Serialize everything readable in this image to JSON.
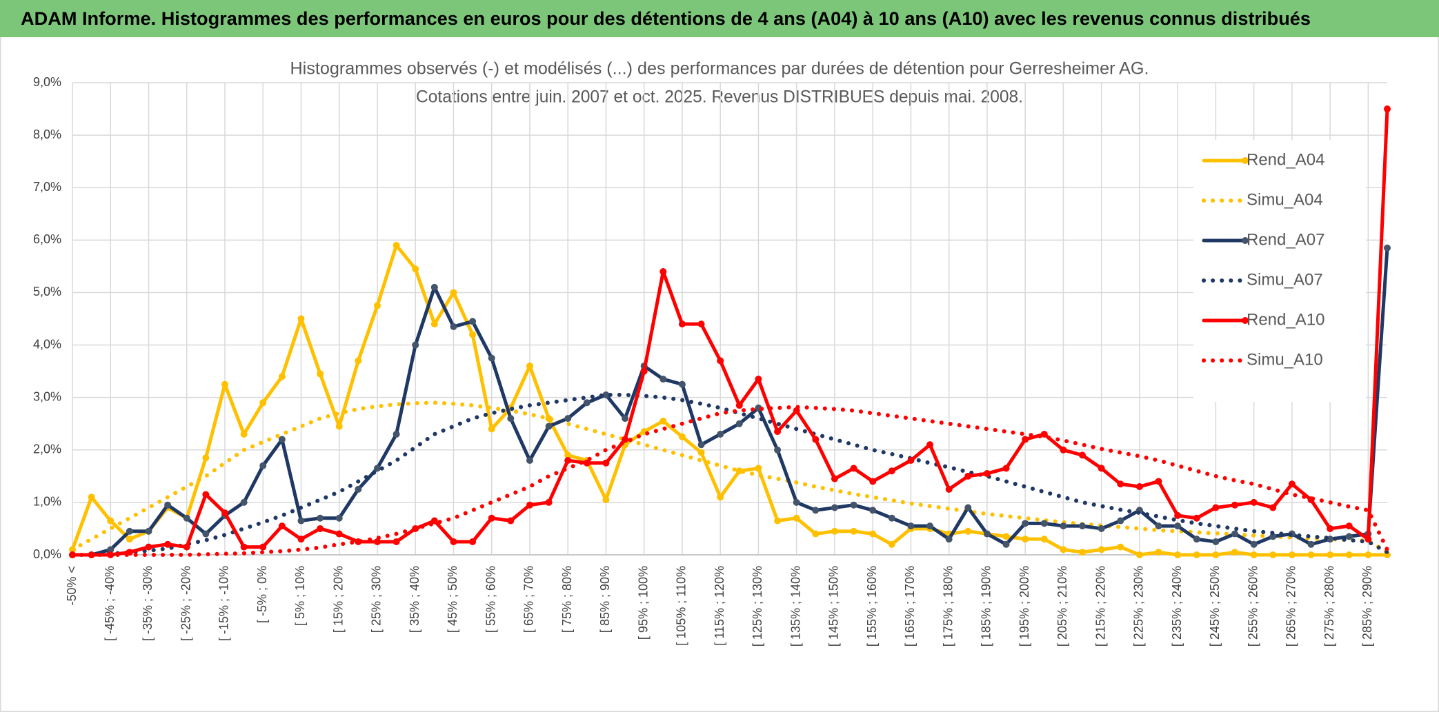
{
  "chart_data": {
    "type": "line",
    "header": "ADAM Informe. Histogrammes des performances en euros pour des détentions de 4 ans (A04) à 10 ans (A10) avec les revenus connus distribués",
    "title": "Histogrammes observés (-) et modélisés (...) des performances par durées de détention pour Gerresheimer AG.",
    "subtitle": "Cotations entre juin. 2007 et oct. 2025. Revenus DISTRIBUES depuis mai. 2008.",
    "categories": [
      "-50% <",
      null,
      "[ -45% ; -40%",
      null,
      "[ -35% ; -30%",
      null,
      "[ -25% ; -20%",
      null,
      "[ -15% ; -10%",
      null,
      "[ -5% ; 0%",
      null,
      "[ 5% ; 10%",
      null,
      "[ 15% ; 20%",
      null,
      "[ 25% ; 30%",
      null,
      "[ 35% ; 40%",
      null,
      "[ 45% ; 50%",
      null,
      "[ 55% ; 60%",
      null,
      "[ 65% ; 70%",
      null,
      "[ 75% ; 80%",
      null,
      "[ 85% ; 90%",
      null,
      "[ 95% ; 100%",
      null,
      "[ 105% ; 110%",
      null,
      "[ 115% ; 120%",
      null,
      "[ 125% ; 130%",
      null,
      "[ 135% ; 140%",
      null,
      "[ 145% ; 150%",
      null,
      "[ 155% ; 160%",
      null,
      "[ 165% ; 170%",
      null,
      "[ 175% ; 180%",
      null,
      "[ 185% ; 190%",
      null,
      "[ 195% ; 200%",
      null,
      "[ 205% ; 210%",
      null,
      "[ 215% ; 220%",
      null,
      "[ 225% ; 230%",
      null,
      "[ 235% ; 240%",
      null,
      "[ 245% ; 250%",
      null,
      "[ 255% ; 260%",
      null,
      "[ 265% ; 270%",
      null,
      "[ 275% ; 280%",
      null,
      "[ 285% ; 290%",
      null
    ],
    "series": [
      {
        "name": "Rend_A04",
        "color": "#ffc000",
        "line_style": "solid",
        "markers": true,
        "values": [
          0.1,
          1.1,
          0.65,
          0.3,
          0.45,
          0.9,
          0.7,
          1.85,
          3.25,
          2.3,
          2.9,
          3.4,
          4.5,
          3.45,
          2.45,
          3.7,
          4.75,
          5.9,
          5.45,
          4.4,
          5.0,
          4.2,
          2.4,
          2.8,
          3.6,
          2.6,
          1.9,
          1.8,
          1.05,
          2.1,
          2.35,
          2.55,
          2.25,
          1.95,
          1.1,
          1.6,
          1.65,
          0.65,
          0.7,
          0.4,
          0.45,
          0.45,
          0.4,
          0.2,
          0.5,
          0.5,
          0.4,
          0.45,
          0.4,
          0.35,
          0.3,
          0.3,
          0.1,
          0.05,
          0.1,
          0.15,
          0,
          0.05,
          0,
          0,
          0,
          0.05,
          0,
          0,
          0,
          0,
          0,
          0,
          0,
          0
        ]
      },
      {
        "name": "Simu_A04",
        "color": "#ffc000",
        "line_style": "dotted",
        "markers": false,
        "values": [
          0.1,
          0.3,
          0.5,
          0.7,
          0.9,
          1.1,
          1.3,
          1.5,
          1.75,
          2.0,
          2.15,
          2.3,
          2.45,
          2.6,
          2.7,
          2.78,
          2.83,
          2.87,
          2.89,
          2.9,
          2.88,
          2.85,
          2.8,
          2.75,
          2.68,
          2.6,
          2.5,
          2.4,
          2.3,
          2.2,
          2.1,
          2.0,
          1.9,
          1.8,
          1.7,
          1.6,
          1.52,
          1.45,
          1.38,
          1.3,
          1.23,
          1.16,
          1.1,
          1.04,
          0.98,
          0.93,
          0.88,
          0.83,
          0.78,
          0.74,
          0.7,
          0.66,
          0.62,
          0.59,
          0.56,
          0.53,
          0.5,
          0.47,
          0.45,
          0.43,
          0.41,
          0.39,
          0.37,
          0.35,
          0.33,
          0.31,
          0.3,
          0.28,
          0.27,
          0.05
        ]
      },
      {
        "name": "Rend_A07",
        "color": "#1f3864",
        "line_style": "solid",
        "markers": true,
        "values": [
          0,
          0,
          0.1,
          0.45,
          0.45,
          0.95,
          0.7,
          0.4,
          0.75,
          1.0,
          1.7,
          2.2,
          0.65,
          0.7,
          0.7,
          1.25,
          1.65,
          2.3,
          4.0,
          5.1,
          4.35,
          4.45,
          3.75,
          2.6,
          1.8,
          2.45,
          2.6,
          2.9,
          3.05,
          2.6,
          3.6,
          3.35,
          3.25,
          2.1,
          2.3,
          2.5,
          2.8,
          2.0,
          1.0,
          0.85,
          0.9,
          0.95,
          0.85,
          0.7,
          0.55,
          0.55,
          0.3,
          0.9,
          0.4,
          0.2,
          0.6,
          0.6,
          0.55,
          0.55,
          0.5,
          0.65,
          0.85,
          0.55,
          0.55,
          0.3,
          0.25,
          0.4,
          0.2,
          0.35,
          0.4,
          0.2,
          0.3,
          0.35,
          0.4,
          5.85
        ]
      },
      {
        "name": "Simu_A07",
        "color": "#1f3864",
        "line_style": "dotted",
        "markers": false,
        "values": [
          0,
          0,
          0.02,
          0.05,
          0.08,
          0.12,
          0.2,
          0.28,
          0.38,
          0.5,
          0.62,
          0.75,
          0.9,
          1.05,
          1.2,
          1.4,
          1.6,
          1.8,
          2.05,
          2.3,
          2.45,
          2.6,
          2.7,
          2.78,
          2.85,
          2.9,
          2.95,
          3.0,
          3.05,
          3.05,
          3.03,
          3.0,
          2.95,
          2.88,
          2.8,
          2.7,
          2.6,
          2.5,
          2.4,
          2.3,
          2.2,
          2.1,
          2.0,
          1.92,
          1.84,
          1.75,
          1.67,
          1.58,
          1.5,
          1.4,
          1.3,
          1.2,
          1.1,
          1.0,
          0.93,
          0.86,
          0.8,
          0.73,
          0.66,
          0.6,
          0.55,
          0.5,
          0.45,
          0.42,
          0.38,
          0.35,
          0.32,
          0.28,
          0.25,
          0.05
        ]
      },
      {
        "name": "Rend_A10",
        "color": "#ff0000",
        "line_style": "solid",
        "markers": true,
        "values": [
          0,
          0,
          0,
          0.05,
          0.15,
          0.2,
          0.15,
          1.15,
          0.8,
          0.15,
          0.15,
          0.55,
          0.3,
          0.5,
          0.4,
          0.25,
          0.25,
          0.25,
          0.5,
          0.65,
          0.25,
          0.25,
          0.7,
          0.65,
          0.95,
          1.0,
          1.8,
          1.75,
          1.75,
          2.2,
          3.5,
          5.4,
          4.4,
          4.4,
          3.7,
          2.85,
          3.35,
          2.35,
          2.75,
          2.2,
          1.45,
          1.65,
          1.4,
          1.6,
          1.8,
          2.1,
          1.25,
          1.5,
          1.55,
          1.65,
          2.2,
          2.3,
          2.0,
          1.9,
          1.65,
          1.35,
          1.3,
          1.4,
          0.75,
          0.7,
          0.9,
          0.95,
          1.0,
          0.9,
          1.35,
          1.05,
          0.5,
          0.55,
          0.3,
          8.5
        ]
      },
      {
        "name": "Simu_A10",
        "color": "#ff0000",
        "line_style": "dotted",
        "markers": false,
        "values": [
          0,
          0,
          0,
          0,
          0,
          0,
          0,
          0.01,
          0.02,
          0.03,
          0.05,
          0.07,
          0.1,
          0.14,
          0.2,
          0.25,
          0.32,
          0.4,
          0.5,
          0.6,
          0.7,
          0.85,
          1.0,
          1.15,
          1.3,
          1.5,
          1.65,
          1.8,
          2.0,
          2.15,
          2.3,
          2.4,
          2.5,
          2.6,
          2.7,
          2.75,
          2.78,
          2.8,
          2.82,
          2.8,
          2.78,
          2.75,
          2.7,
          2.65,
          2.6,
          2.55,
          2.5,
          2.45,
          2.4,
          2.35,
          2.3,
          2.25,
          2.18,
          2.1,
          2.02,
          1.95,
          1.88,
          1.8,
          1.7,
          1.6,
          1.5,
          1.42,
          1.35,
          1.25,
          1.15,
          1.08,
          1.0,
          0.92,
          0.85,
          0.1
        ]
      }
    ],
    "ylim": [
      0,
      9
    ],
    "yticks": [
      {
        "value": 0,
        "label": "0,0%"
      },
      {
        "value": 1,
        "label": "1,0%"
      },
      {
        "value": 2,
        "label": "2,0%"
      },
      {
        "value": 3,
        "label": "3,0%"
      },
      {
        "value": 4,
        "label": "4,0%"
      },
      {
        "value": 5,
        "label": "5,0%"
      },
      {
        "value": 6,
        "label": "6,0%"
      },
      {
        "value": 7,
        "label": "7,0%"
      },
      {
        "value": 8,
        "label": "8,0%"
      },
      {
        "value": 9,
        "label": "9,0%"
      }
    ],
    "grid": true,
    "legend": "upper right"
  }
}
